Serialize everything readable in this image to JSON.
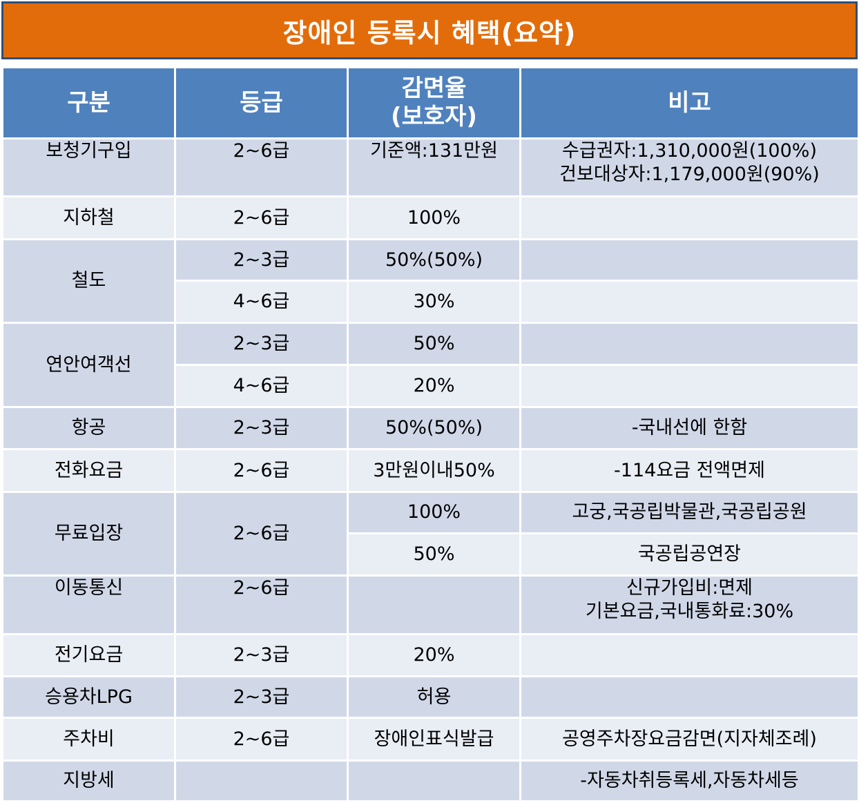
{
  "title": "장애인 등록시 혜택(요약)",
  "headers": {
    "category": "구분",
    "grade": "등급",
    "rate_line1": "감면율",
    "rate_line2": "(보호자)",
    "note": "비고"
  },
  "rows": {
    "assistive": {
      "category": "보청기구입",
      "grade": "2~6급",
      "rate": "기준액:131만원",
      "note_line1": "수급권자:1,310,000원(100%)",
      "note_line2": "건보대상자:1,179,000원(90%)"
    },
    "subway": {
      "category": "지하철",
      "grade": "2~6급",
      "rate": "100%",
      "note": ""
    },
    "rail": {
      "category": "철도",
      "grade_a": "2~3급",
      "rate_a": "50%(50%)",
      "note_a": "",
      "grade_b": "4~6급",
      "rate_b": "30%",
      "note_b": ""
    },
    "ferry": {
      "category": "연안여객선",
      "grade_a": "2~3급",
      "rate_a": "50%",
      "note_a": "",
      "grade_b": "4~6급",
      "rate_b": "20%",
      "note_b": ""
    },
    "air": {
      "category": "항공",
      "grade": "2~3급",
      "rate": "50%(50%)",
      "note": "-국내선에 한함"
    },
    "phone": {
      "category": "전화요금",
      "grade": "2~6급",
      "rate": "3만원이내50%",
      "note": "-114요금 전액면제"
    },
    "admission": {
      "category": "무료입장",
      "grade": "2~6급",
      "rate_a": "100%",
      "note_a": "고궁,국공립박물관,국공립공원",
      "rate_b": "50%",
      "note_b": "국공립공연장"
    },
    "mobile": {
      "category": "이동통신",
      "grade": "2~6급",
      "rate": "",
      "note_line1": "신규가입비:면제",
      "note_line2": "기본요금,국내통화료:30%"
    },
    "electric": {
      "category": "전기요금",
      "grade": "2~3급",
      "rate": "20%",
      "note": ""
    },
    "lpg": {
      "category": "승용차LPG",
      "grade": "2~3급",
      "rate": "허용",
      "note": ""
    },
    "parking": {
      "category": "주차비",
      "grade": "2~6급",
      "rate": "장애인표식발급",
      "note": "공영주차장요금감면(지자체조례)"
    },
    "localtax": {
      "category": "지방세",
      "grade": "",
      "rate": "",
      "note": "-자동차취등록세,자동차세등"
    }
  },
  "colors": {
    "banner": "#e36c0a",
    "header": "#4f81bd",
    "row_dark": "#d0d8e8",
    "row_light": "#e9edf4"
  }
}
